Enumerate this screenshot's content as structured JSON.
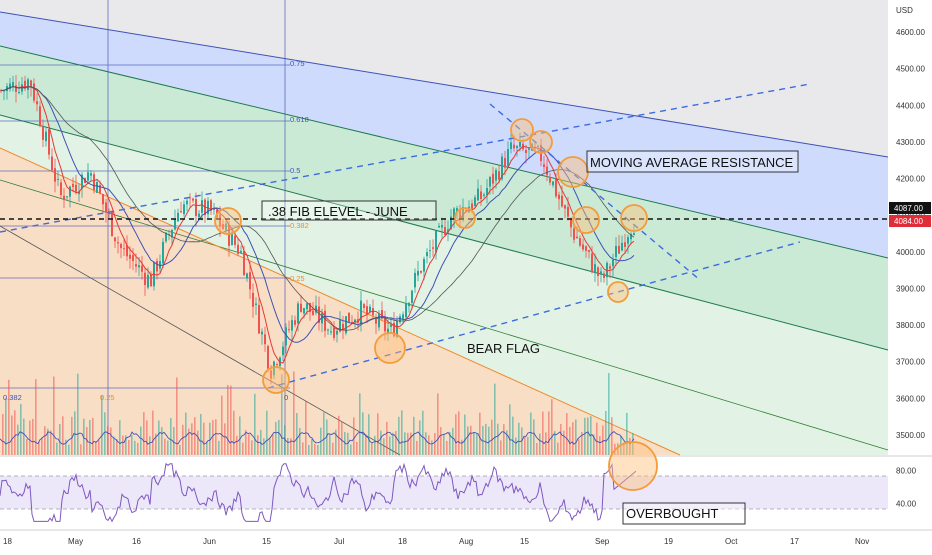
{
  "currency_label": "USD",
  "price_axis": {
    "ticks": [
      "4600.00",
      "4500.00",
      "4400.00",
      "4300.00",
      "4200.00",
      "4100.00",
      "4000.00",
      "3900.00",
      "3800.00",
      "3700.00",
      "3600.00",
      "3500.00"
    ],
    "ylim": [
      3450,
      4680
    ]
  },
  "rsi_axis": {
    "ticks": [
      "80.00",
      "40.00"
    ],
    "ylim": [
      10,
      95
    ],
    "bands": [
      30,
      70
    ]
  },
  "time_axis": {
    "labels": [
      "18",
      "May",
      "16",
      "Jun",
      "15",
      "Jul",
      "18",
      "Aug",
      "15",
      "Sep",
      "19",
      "Oct",
      "17",
      "Nov"
    ]
  },
  "price_badges": {
    "last": "4087.00",
    "prev": "4084.00"
  },
  "fib_labels": [
    "0.75",
    "0.618",
    "0.5",
    "0.382",
    "0.25",
    "0.382",
    "0.25",
    "0"
  ],
  "annotations": {
    "fib_level": ".38 FIB ELEVEL -  JUNE",
    "ma_resistance": "MOVING AVERAGE RESISTANCE",
    "bear_flag": "BEAR FLAG",
    "overbought": "OVERBOUGHT"
  },
  "colors": {
    "fan_blue": "#c9d8ff",
    "fan_green": "#cdeed7",
    "fan_light_green": "#e3f5e6",
    "fan_orange": "#fde0c8",
    "candle_up": "#26a69a",
    "candle_down": "#ef5350",
    "ma_red": "#e53935",
    "ma_blue": "#3f51b5",
    "rsi": "#7e57c2",
    "circle": "#f39c3c",
    "trend_dash": "#3d6be0",
    "label_blue": "#2962ff",
    "label_red": "#e02d3a"
  },
  "chart_data": {
    "type": "candlestick",
    "title": "",
    "ylabel": "USD",
    "ylim": [
      3450,
      4680
    ],
    "x": [
      "Apr 18",
      "May 2",
      "May 16",
      "Jun 1",
      "Jun 15",
      "Jul 1",
      "Jul 18",
      "Aug 1",
      "Aug 15",
      "Sep 1",
      "Sep 19",
      "Oct 3",
      "Oct 17",
      "Nov 1"
    ],
    "close_path": [
      {
        "date": "Apr 14",
        "value": 4440
      },
      {
        "date": "Apr 21",
        "value": 4470
      },
      {
        "date": "Apr 28",
        "value": 4150
      },
      {
        "date": "May 5",
        "value": 4220
      },
      {
        "date": "May 12",
        "value": 4010
      },
      {
        "date": "May 19",
        "value": 3920
      },
      {
        "date": "May 26",
        "value": 4130
      },
      {
        "date": "Jun 2",
        "value": 4110
      },
      {
        "date": "Jun 9",
        "value": 4000
      },
      {
        "date": "Jun 16",
        "value": 3680
      },
      {
        "date": "Jun 23",
        "value": 3860
      },
      {
        "date": "Jun 30",
        "value": 3790
      },
      {
        "date": "Jul 7",
        "value": 3840
      },
      {
        "date": "Jul 14",
        "value": 3780
      },
      {
        "date": "Jul 21",
        "value": 3960
      },
      {
        "date": "Jul 28",
        "value": 4100
      },
      {
        "date": "Aug 4",
        "value": 4150
      },
      {
        "date": "Aug 11",
        "value": 4280
      },
      {
        "date": "Aug 18",
        "value": 4260
      },
      {
        "date": "Aug 25",
        "value": 4060
      },
      {
        "date": "Sep 1",
        "value": 3920
      },
      {
        "date": "Sep 8",
        "value": 4080
      }
    ],
    "horizontal_levels": [
      4084,
      4087
    ],
    "rsi": {
      "levels": [
        30,
        70
      ],
      "last": 77
    },
    "annotations": [
      ".38 FIB ELEVEL -  JUNE",
      "MOVING AVERAGE RESISTANCE",
      "BEAR FLAG",
      "OVERBOUGHT"
    ]
  }
}
